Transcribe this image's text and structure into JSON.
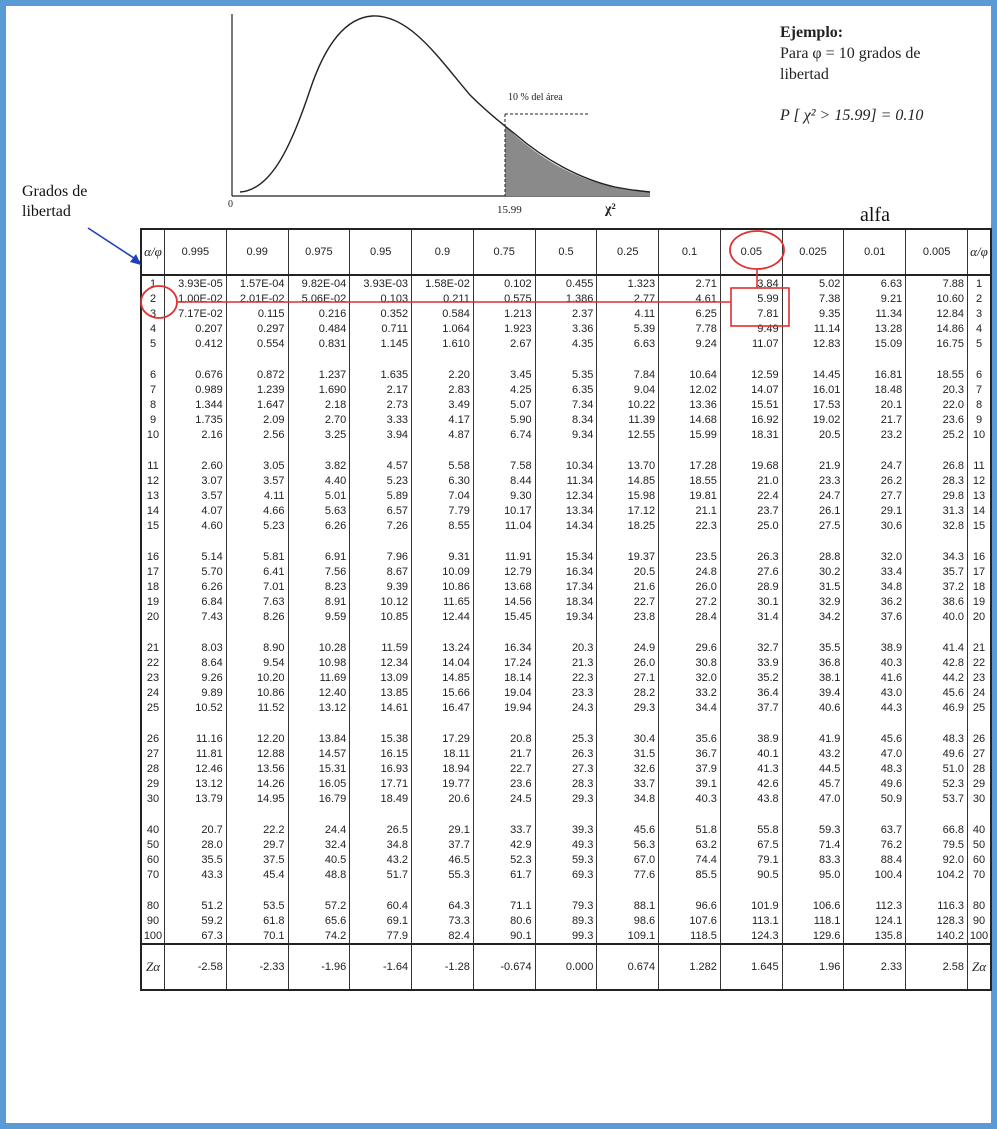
{
  "figure": {
    "area_label": "10 % del área",
    "x_zero": "0",
    "x_critical": "15.99",
    "x_axis_symbol": "χ²"
  },
  "example": {
    "title": "Ejemplo:",
    "line1": "Para φ = 10 grados de",
    "line2": "libertad",
    "prob": "P [ χ² > 15.99] = 0.10"
  },
  "labels": {
    "dof_line1": "Grados de",
    "dof_line2": "libertad",
    "alfa": "alfa",
    "corner": "α/φ"
  },
  "alphas": [
    "0.995",
    "0.99",
    "0.975",
    "0.95",
    "0.9",
    "0.75",
    "0.5",
    "0.25",
    "0.1",
    "0.05",
    "0.025",
    "0.01",
    "0.005"
  ],
  "groups": [
    [
      [
        "1",
        "3.93E-05",
        "1.57E-04",
        "9.82E-04",
        "3.93E-03",
        "1.58E-02",
        "0.102",
        "0.455",
        "1.323",
        "2.71",
        "3.84",
        "5.02",
        "6.63",
        "7.88"
      ],
      [
        "2",
        "1.00E-02",
        "2.01E-02",
        "5.06E-02",
        "0.103",
        "0.211",
        "0.575",
        "1.386",
        "2.77",
        "4.61",
        "5.99",
        "7.38",
        "9.21",
        "10.60"
      ],
      [
        "3",
        "7.17E-02",
        "0.115",
        "0.216",
        "0.352",
        "0.584",
        "1.213",
        "2.37",
        "4.11",
        "6.25",
        "7.81",
        "9.35",
        "11.34",
        "12.84"
      ],
      [
        "4",
        "0.207",
        "0.297",
        "0.484",
        "0.711",
        "1.064",
        "1.923",
        "3.36",
        "5.39",
        "7.78",
        "9.49",
        "11.14",
        "13.28",
        "14.86"
      ],
      [
        "5",
        "0.412",
        "0.554",
        "0.831",
        "1.145",
        "1.610",
        "2.67",
        "4.35",
        "6.63",
        "9.24",
        "11.07",
        "12.83",
        "15.09",
        "16.75"
      ]
    ],
    [
      [
        "6",
        "0.676",
        "0.872",
        "1.237",
        "1.635",
        "2.20",
        "3.45",
        "5.35",
        "7.84",
        "10.64",
        "12.59",
        "14.45",
        "16.81",
        "18.55"
      ],
      [
        "7",
        "0.989",
        "1.239",
        "1.690",
        "2.17",
        "2.83",
        "4.25",
        "6.35",
        "9.04",
        "12.02",
        "14.07",
        "16.01",
        "18.48",
        "20.3"
      ],
      [
        "8",
        "1.344",
        "1.647",
        "2.18",
        "2.73",
        "3.49",
        "5.07",
        "7.34",
        "10.22",
        "13.36",
        "15.51",
        "17.53",
        "20.1",
        "22.0"
      ],
      [
        "9",
        "1.735",
        "2.09",
        "2.70",
        "3.33",
        "4.17",
        "5.90",
        "8.34",
        "11.39",
        "14.68",
        "16.92",
        "19.02",
        "21.7",
        "23.6"
      ],
      [
        "10",
        "2.16",
        "2.56",
        "3.25",
        "3.94",
        "4.87",
        "6.74",
        "9.34",
        "12.55",
        "15.99",
        "18.31",
        "20.5",
        "23.2",
        "25.2"
      ]
    ],
    [
      [
        "11",
        "2.60",
        "3.05",
        "3.82",
        "4.57",
        "5.58",
        "7.58",
        "10.34",
        "13.70",
        "17.28",
        "19.68",
        "21.9",
        "24.7",
        "26.8"
      ],
      [
        "12",
        "3.07",
        "3.57",
        "4.40",
        "5.23",
        "6.30",
        "8.44",
        "11.34",
        "14.85",
        "18.55",
        "21.0",
        "23.3",
        "26.2",
        "28.3"
      ],
      [
        "13",
        "3.57",
        "4.11",
        "5.01",
        "5.89",
        "7.04",
        "9.30",
        "12.34",
        "15.98",
        "19.81",
        "22.4",
        "24.7",
        "27.7",
        "29.8"
      ],
      [
        "14",
        "4.07",
        "4.66",
        "5.63",
        "6.57",
        "7.79",
        "10.17",
        "13.34",
        "17.12",
        "21.1",
        "23.7",
        "26.1",
        "29.1",
        "31.3"
      ],
      [
        "15",
        "4.60",
        "5.23",
        "6.26",
        "7.26",
        "8.55",
        "11.04",
        "14.34",
        "18.25",
        "22.3",
        "25.0",
        "27.5",
        "30.6",
        "32.8"
      ]
    ],
    [
      [
        "16",
        "5.14",
        "5.81",
        "6.91",
        "7.96",
        "9.31",
        "11.91",
        "15.34",
        "19.37",
        "23.5",
        "26.3",
        "28.8",
        "32.0",
        "34.3"
      ],
      [
        "17",
        "5.70",
        "6.41",
        "7.56",
        "8.67",
        "10.09",
        "12.79",
        "16.34",
        "20.5",
        "24.8",
        "27.6",
        "30.2",
        "33.4",
        "35.7"
      ],
      [
        "18",
        "6.26",
        "7.01",
        "8.23",
        "9.39",
        "10.86",
        "13.68",
        "17.34",
        "21.6",
        "26.0",
        "28.9",
        "31.5",
        "34.8",
        "37.2"
      ],
      [
        "19",
        "6.84",
        "7.63",
        "8.91",
        "10.12",
        "11.65",
        "14.56",
        "18.34",
        "22.7",
        "27.2",
        "30.1",
        "32.9",
        "36.2",
        "38.6"
      ],
      [
        "20",
        "7.43",
        "8.26",
        "9.59",
        "10.85",
        "12.44",
        "15.45",
        "19.34",
        "23.8",
        "28.4",
        "31.4",
        "34.2",
        "37.6",
        "40.0"
      ]
    ],
    [
      [
        "21",
        "8.03",
        "8.90",
        "10.28",
        "11.59",
        "13.24",
        "16.34",
        "20.3",
        "24.9",
        "29.6",
        "32.7",
        "35.5",
        "38.9",
        "41.4"
      ],
      [
        "22",
        "8.64",
        "9.54",
        "10.98",
        "12.34",
        "14.04",
        "17.24",
        "21.3",
        "26.0",
        "30.8",
        "33.9",
        "36.8",
        "40.3",
        "42.8"
      ],
      [
        "23",
        "9.26",
        "10.20",
        "11.69",
        "13.09",
        "14.85",
        "18.14",
        "22.3",
        "27.1",
        "32.0",
        "35.2",
        "38.1",
        "41.6",
        "44.2"
      ],
      [
        "24",
        "9.89",
        "10.86",
        "12.40",
        "13.85",
        "15.66",
        "19.04",
        "23.3",
        "28.2",
        "33.2",
        "36.4",
        "39.4",
        "43.0",
        "45.6"
      ],
      [
        "25",
        "10.52",
        "11.52",
        "13.12",
        "14.61",
        "16.47",
        "19.94",
        "24.3",
        "29.3",
        "34.4",
        "37.7",
        "40.6",
        "44.3",
        "46.9"
      ]
    ],
    [
      [
        "26",
        "11.16",
        "12.20",
        "13.84",
        "15.38",
        "17.29",
        "20.8",
        "25.3",
        "30.4",
        "35.6",
        "38.9",
        "41.9",
        "45.6",
        "48.3"
      ],
      [
        "27",
        "11.81",
        "12.88",
        "14.57",
        "16.15",
        "18.11",
        "21.7",
        "26.3",
        "31.5",
        "36.7",
        "40.1",
        "43.2",
        "47.0",
        "49.6"
      ],
      [
        "28",
        "12.46",
        "13.56",
        "15.31",
        "16.93",
        "18.94",
        "22.7",
        "27.3",
        "32.6",
        "37.9",
        "41.3",
        "44.5",
        "48.3",
        "51.0"
      ],
      [
        "29",
        "13.12",
        "14.26",
        "16.05",
        "17.71",
        "19.77",
        "23.6",
        "28.3",
        "33.7",
        "39.1",
        "42.6",
        "45.7",
        "49.6",
        "52.3"
      ],
      [
        "30",
        "13.79",
        "14.95",
        "16.79",
        "18.49",
        "20.6",
        "24.5",
        "29.3",
        "34.8",
        "40.3",
        "43.8",
        "47.0",
        "50.9",
        "53.7"
      ]
    ],
    [
      [
        "40",
        "20.7",
        "22.2",
        "24.4",
        "26.5",
        "29.1",
        "33.7",
        "39.3",
        "45.6",
        "51.8",
        "55.8",
        "59.3",
        "63.7",
        "66.8"
      ],
      [
        "50",
        "28.0",
        "29.7",
        "32.4",
        "34.8",
        "37.7",
        "42.9",
        "49.3",
        "56.3",
        "63.2",
        "67.5",
        "71.4",
        "76.2",
        "79.5"
      ],
      [
        "60",
        "35.5",
        "37.5",
        "40.5",
        "43.2",
        "46.5",
        "52.3",
        "59.3",
        "67.0",
        "74.4",
        "79.1",
        "83.3",
        "88.4",
        "92.0"
      ],
      [
        "70",
        "43.3",
        "45.4",
        "48.8",
        "51.7",
        "55.3",
        "61.7",
        "69.3",
        "77.6",
        "85.5",
        "90.5",
        "95.0",
        "100.4",
        "104.2"
      ]
    ],
    [
      [
        "80",
        "51.2",
        "53.5",
        "57.2",
        "60.4",
        "64.3",
        "71.1",
        "79.3",
        "88.1",
        "96.6",
        "101.9",
        "106.6",
        "112.3",
        "116.3"
      ],
      [
        "90",
        "59.2",
        "61.8",
        "65.6",
        "69.1",
        "73.3",
        "80.6",
        "89.3",
        "98.6",
        "107.6",
        "113.1",
        "118.1",
        "124.1",
        "128.3"
      ],
      [
        "100",
        "67.3",
        "70.1",
        "74.2",
        "77.9",
        "82.4",
        "90.1",
        "99.3",
        "109.1",
        "118.5",
        "124.3",
        "129.6",
        "135.8",
        "140.2"
      ]
    ]
  ],
  "z_row": {
    "label": "Zα",
    "values": [
      "-2.58",
      "-2.33",
      "-1.96",
      "-1.64",
      "-1.28",
      "-0.674",
      "0.000",
      "0.674",
      "1.282",
      "1.645",
      "1.96",
      "2.33",
      "2.58"
    ]
  },
  "colors": {
    "frame": "#5b9bd5",
    "highlight": "#e03030",
    "shade": "#8a8a8a",
    "arrow": "#1f3fbf"
  }
}
